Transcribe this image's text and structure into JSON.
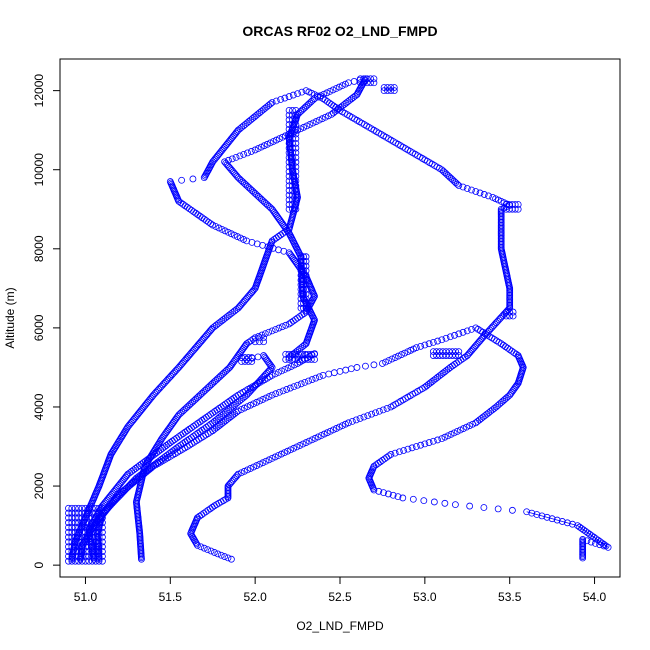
{
  "chart_data": {
    "type": "scatter",
    "title": "ORCAS RF02 O2_LND_FMPD",
    "xlabel": "O2_LND_FMPD",
    "ylabel": "Altitude (m)",
    "xlim": [
      50.85,
      54.15
    ],
    "ylim": [
      -300,
      12800
    ],
    "x_ticks": [
      51.0,
      51.5,
      52.0,
      52.5,
      53.0,
      53.5,
      54.0
    ],
    "x_tick_labels": [
      "51.0",
      "51.5",
      "52.0",
      "52.5",
      "53.0",
      "53.5",
      "54.0"
    ],
    "y_ticks": [
      0,
      2000,
      4000,
      6000,
      8000,
      10000,
      12000
    ],
    "y_tick_labels": [
      "0",
      "2000",
      "4000",
      "6000",
      "8000",
      "10000",
      "12000"
    ],
    "marker": "open-circle",
    "color": "#0000ff",
    "series": [
      {
        "path": [
          [
            53.93,
            180
          ],
          [
            53.93,
            650
          ],
          [
            54.08,
            450
          ],
          [
            53.9,
            1000
          ],
          [
            53.6,
            1350
          ],
          [
            53.18,
            1530
          ],
          [
            52.87,
            1700
          ],
          [
            52.7,
            1900
          ],
          [
            52.67,
            2200
          ],
          [
            52.7,
            2500
          ],
          [
            52.8,
            2800
          ],
          [
            52.95,
            3000
          ],
          [
            53.1,
            3200
          ],
          [
            53.3,
            3600
          ],
          [
            53.42,
            4000
          ],
          [
            53.5,
            4300
          ],
          [
            53.55,
            4600
          ],
          [
            53.58,
            5000
          ],
          [
            53.55,
            5300
          ],
          [
            53.45,
            5600
          ],
          [
            53.3,
            6000
          ],
          [
            53.1,
            5700
          ],
          [
            52.95,
            5500
          ],
          [
            52.9,
            5400
          ],
          [
            52.75,
            5100
          ],
          [
            52.6,
            5000
          ],
          [
            52.4,
            4800
          ],
          [
            52.1,
            4300
          ],
          [
            51.9,
            3900
          ],
          [
            51.75,
            3400
          ],
          [
            51.6,
            3000
          ],
          [
            51.4,
            2500
          ],
          [
            51.2,
            1800
          ],
          [
            51.05,
            1000
          ],
          [
            50.98,
            500
          ],
          [
            50.97,
            150
          ]
        ],
        "step": 38
      },
      {
        "path": [
          [
            51.86,
            150
          ],
          [
            51.8,
            250
          ],
          [
            51.66,
            500
          ],
          [
            51.62,
            800
          ],
          [
            51.66,
            1200
          ],
          [
            51.76,
            1500
          ],
          [
            51.84,
            1700
          ],
          [
            51.84,
            2000
          ],
          [
            51.9,
            2300
          ],
          [
            52.1,
            2700
          ],
          [
            52.3,
            3100
          ],
          [
            52.55,
            3600
          ],
          [
            52.8,
            4000
          ],
          [
            53.0,
            4500
          ],
          [
            53.15,
            5000
          ],
          [
            53.25,
            5300
          ],
          [
            53.35,
            5800
          ],
          [
            53.5,
            6500
          ],
          [
            53.5,
            7000
          ],
          [
            53.45,
            8000
          ],
          [
            53.45,
            9000
          ],
          [
            53.5,
            9100
          ],
          [
            53.4,
            9300
          ],
          [
            53.2,
            9600
          ],
          [
            53.1,
            10000
          ],
          [
            52.9,
            10500
          ],
          [
            52.7,
            11000
          ],
          [
            52.5,
            11500
          ],
          [
            52.4,
            11800
          ],
          [
            52.3,
            12000
          ],
          [
            52.1,
            11700
          ],
          [
            51.9,
            11000
          ],
          [
            51.75,
            10200
          ],
          [
            51.7,
            9800
          ],
          [
            51.5,
            9700
          ],
          [
            51.55,
            9200
          ],
          [
            51.75,
            8600
          ],
          [
            51.95,
            8200
          ],
          [
            52.2,
            7900
          ],
          [
            52.3,
            7300
          ],
          [
            52.35,
            6800
          ],
          [
            52.3,
            6400
          ],
          [
            52.2,
            6100
          ],
          [
            52.0,
            5750
          ],
          [
            51.95,
            5600
          ],
          [
            51.9,
            5300
          ],
          [
            51.85,
            5000
          ],
          [
            51.75,
            4600
          ],
          [
            51.65,
            4200
          ],
          [
            51.55,
            3800
          ],
          [
            51.45,
            3200
          ],
          [
            51.35,
            2500
          ],
          [
            51.3,
            1600
          ],
          [
            51.32,
            800
          ],
          [
            51.33,
            150
          ]
        ],
        "step": 38
      },
      {
        "path": [
          [
            51.05,
            150
          ],
          [
            51.02,
            900
          ],
          [
            51.1,
            1500
          ],
          [
            51.25,
            2300
          ],
          [
            51.5,
            3100
          ],
          [
            51.7,
            3700
          ],
          [
            51.9,
            4300
          ],
          [
            52.1,
            4800
          ],
          [
            52.25,
            5100
          ],
          [
            52.35,
            5350
          ],
          [
            52.2,
            5250
          ],
          [
            52.3,
            5600
          ],
          [
            52.35,
            6200
          ],
          [
            52.28,
            6800
          ],
          [
            52.27,
            7800
          ],
          [
            52.2,
            8400
          ],
          [
            52.1,
            9000
          ],
          [
            52.0,
            9400
          ],
          [
            51.9,
            9800
          ],
          [
            51.82,
            10200
          ],
          [
            52.0,
            10500
          ],
          [
            52.25,
            11000
          ],
          [
            52.45,
            11400
          ],
          [
            52.6,
            11900
          ],
          [
            52.65,
            12300
          ],
          [
            52.55,
            12200
          ],
          [
            52.35,
            11800
          ],
          [
            52.25,
            11400
          ],
          [
            52.2,
            10800
          ],
          [
            52.22,
            10000
          ],
          [
            52.25,
            9300
          ],
          [
            52.2,
            8500
          ],
          [
            52.1,
            8200
          ],
          [
            52.05,
            7600
          ],
          [
            52.0,
            7000
          ],
          [
            51.9,
            6500
          ],
          [
            51.75,
            6000
          ],
          [
            51.65,
            5500
          ],
          [
            51.55,
            5000
          ],
          [
            51.4,
            4300
          ],
          [
            51.25,
            3500
          ],
          [
            51.15,
            2800
          ],
          [
            51.08,
            2000
          ],
          [
            51.0,
            1200
          ],
          [
            50.94,
            600
          ],
          [
            50.92,
            150
          ]
        ],
        "step": 38
      },
      {
        "path": [
          [
            51.08,
            150
          ],
          [
            51.07,
            800
          ],
          [
            51.1,
            1300
          ],
          [
            51.3,
            2200
          ],
          [
            51.55,
            3000
          ],
          [
            51.75,
            3600
          ],
          [
            51.95,
            4300
          ],
          [
            52.1,
            5000
          ],
          [
            52.05,
            5300
          ],
          [
            51.95,
            5200
          ]
        ],
        "step": 38
      }
    ],
    "clusters": [
      {
        "x": [
          50.9,
          51.1
        ],
        "y": [
          100,
          1500
        ]
      },
      {
        "x": [
          52.62,
          52.7
        ],
        "y": [
          12200,
          12350
        ]
      },
      {
        "x": [
          52.76,
          52.82
        ],
        "y": [
          12000,
          12080
        ]
      },
      {
        "x": [
          53.48,
          53.55
        ],
        "y": [
          9000,
          9120
        ]
      },
      {
        "x": [
          53.48,
          53.52
        ],
        "y": [
          6300,
          6450
        ]
      },
      {
        "x": [
          52.18,
          52.35
        ],
        "y": [
          5200,
          5400
        ]
      },
      {
        "x": [
          51.92,
          51.98
        ],
        "y": [
          5150,
          5300
        ]
      },
      {
        "x": [
          52.0,
          52.05
        ],
        "y": [
          5650,
          5750
        ]
      },
      {
        "x": [
          53.05,
          53.2
        ],
        "y": [
          5300,
          5400
        ]
      },
      {
        "x": [
          52.2,
          52.24
        ],
        "y": [
          9000,
          11500
        ]
      },
      {
        "x": [
          52.27,
          52.3
        ],
        "y": [
          6500,
          7800
        ]
      }
    ]
  }
}
